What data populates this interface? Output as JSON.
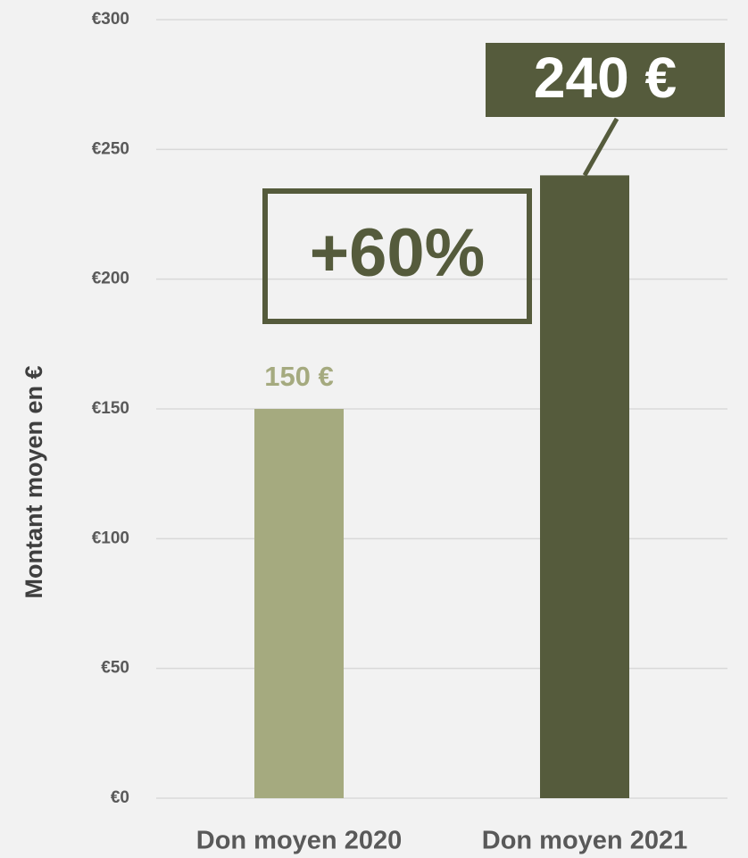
{
  "chart_data": {
    "type": "bar",
    "ylabel": "Montant moyen en €",
    "categories": [
      "Don moyen 2020",
      "Don moyen 2021"
    ],
    "values": [
      150,
      240
    ],
    "value_labels": [
      "150 €",
      "240 €"
    ],
    "colors": [
      "#a5aa7f",
      "#555b3c"
    ],
    "annotation": "+60%",
    "ylim": [
      0,
      300
    ],
    "yticks": [
      {
        "value": 0,
        "label": "€0"
      },
      {
        "value": 50,
        "label": "€50"
      },
      {
        "value": 100,
        "label": "€100"
      },
      {
        "value": 150,
        "label": "€150"
      },
      {
        "value": 200,
        "label": "€200"
      },
      {
        "value": 250,
        "label": "€250"
      },
      {
        "value": 300,
        "label": "€300"
      }
    ],
    "grid": true
  }
}
